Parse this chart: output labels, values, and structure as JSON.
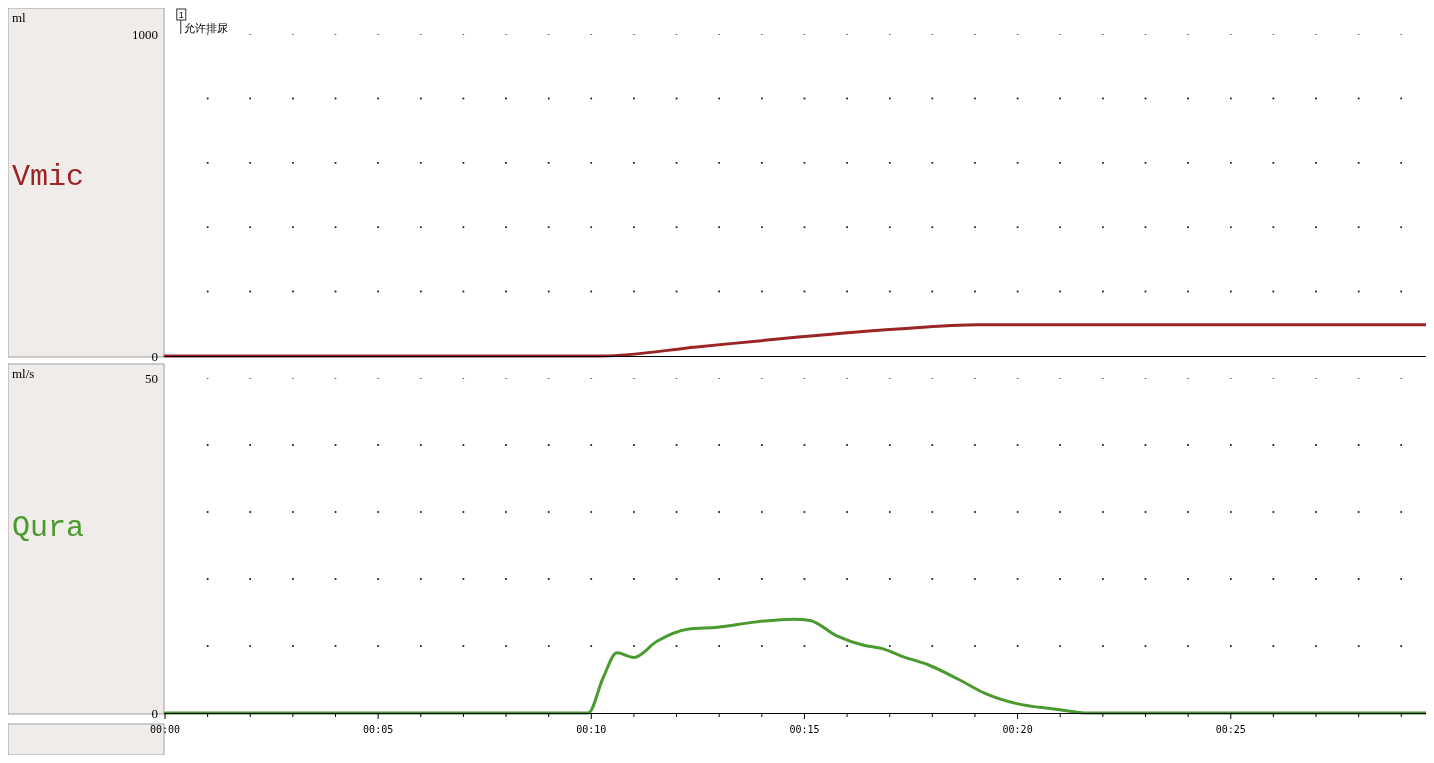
{
  "chart_data": [
    {
      "type": "line",
      "ylabel": "ml",
      "xlim": [
        0,
        29.58
      ],
      "ylim": [
        0,
        1000
      ],
      "yticks": [
        0,
        {
          "value": 200,
          "label": null
        },
        {
          "value": 400,
          "label": null
        },
        {
          "value": 600,
          "label": null
        },
        {
          "value": 800,
          "label": null
        },
        1000
      ],
      "xticks": [
        {
          "value": 1,
          "label": null
        },
        {
          "value": 2,
          "label": null
        },
        {
          "value": 3,
          "label": null
        },
        {
          "value": 4,
          "label": null
        },
        {
          "value": 5,
          "label": null
        },
        {
          "value": 6,
          "label": null
        },
        {
          "value": 7,
          "label": null
        },
        {
          "value": 8,
          "label": null
        },
        {
          "value": 9,
          "label": null
        },
        {
          "value": 10,
          "label": null
        },
        {
          "value": 11,
          "label": null
        },
        {
          "value": 12,
          "label": null
        },
        {
          "value": 13,
          "label": null
        },
        {
          "value": 14,
          "label": null
        },
        {
          "value": 15,
          "label": null
        },
        {
          "value": 16,
          "label": null
        },
        {
          "value": 17,
          "label": null
        },
        {
          "value": 18,
          "label": null
        },
        {
          "value": 19,
          "label": null
        },
        {
          "value": 20,
          "label": null
        },
        {
          "value": 21,
          "label": null
        },
        {
          "value": 22,
          "label": null
        },
        {
          "value": 23,
          "label": null
        },
        {
          "value": 24,
          "label": null
        },
        {
          "value": 25,
          "label": null
        },
        {
          "value": 26,
          "label": null
        },
        {
          "value": 27,
          "label": null
        },
        {
          "value": 28,
          "label": null
        },
        {
          "value": 29,
          "label": null
        }
      ],
      "tick_labels": "y",
      "grid": true,
      "ref_lines": [
        {
          "axis": "x",
          "value": 0.37,
          "label": "允许排尿"
        }
      ],
      "annotations": [
        "1"
      ],
      "series": [
        {
          "name": "Vmic",
          "color": "#9b2424",
          "x": [
            0,
            10.26,
            12.47,
            14.8,
            17.1,
            19.1,
            29.58
          ],
          "values": [
            0,
            0,
            28,
            58,
            83,
            97,
            97
          ]
        }
      ]
    },
    {
      "type": "line",
      "ylabel": "ml/s",
      "xlim": [
        0,
        29.58
      ],
      "ylim": [
        0,
        50
      ],
      "yticks": [
        0,
        {
          "value": 10,
          "label": null
        },
        {
          "value": 20,
          "label": null
        },
        {
          "value": 30,
          "label": null
        },
        {
          "value": 40,
          "label": null
        },
        50
      ],
      "xticks": [
        {
          "value": 0,
          "label": "00:00"
        },
        {
          "value": 1,
          "label": null
        },
        {
          "value": 2,
          "label": null
        },
        {
          "value": 3,
          "label": null
        },
        {
          "value": 4,
          "label": null
        },
        {
          "value": 5,
          "label": "00:05"
        },
        {
          "value": 6,
          "label": null
        },
        {
          "value": 7,
          "label": null
        },
        {
          "value": 8,
          "label": null
        },
        {
          "value": 9,
          "label": null
        },
        {
          "value": 10,
          "label": "00:10"
        },
        {
          "value": 11,
          "label": null
        },
        {
          "value": 12,
          "label": null
        },
        {
          "value": 13,
          "label": null
        },
        {
          "value": 14,
          "label": null
        },
        {
          "value": 15,
          "label": "00:15"
        },
        {
          "value": 16,
          "label": null
        },
        {
          "value": 17,
          "label": null
        },
        {
          "value": 18,
          "label": null
        },
        {
          "value": 19,
          "label": null
        },
        {
          "value": 20,
          "label": "00:20"
        },
        {
          "value": 21,
          "label": null
        },
        {
          "value": 22,
          "label": null
        },
        {
          "value": 23,
          "label": null
        },
        {
          "value": 24,
          "label": null
        },
        {
          "value": 25,
          "label": "00:25"
        },
        {
          "value": 26,
          "label": null
        },
        {
          "value": 27,
          "label": null
        },
        {
          "value": 28,
          "label": null
        },
        {
          "value": 29,
          "label": null
        }
      ],
      "grid": true,
      "series": [
        {
          "name": "Qura",
          "color": "#4a9a2e",
          "x": [
            0,
            9.93,
            10.28,
            10.6,
            11.0,
            11.54,
            12.26,
            12.96,
            13.87,
            14.76,
            15.13,
            15.76,
            16.39,
            16.83,
            17.27,
            17.9,
            18.62,
            19.25,
            19.98,
            20.86,
            21.68,
            29.58
          ],
          "values": [
            0,
            0,
            5.3,
            9.0,
            8.3,
            10.7,
            12.5,
            12.8,
            13.6,
            14.0,
            13.8,
            11.5,
            10.1,
            9.6,
            8.5,
            7.2,
            5.0,
            2.9,
            1.4,
            0.6,
            0,
            0
          ]
        }
      ]
    }
  ]
}
